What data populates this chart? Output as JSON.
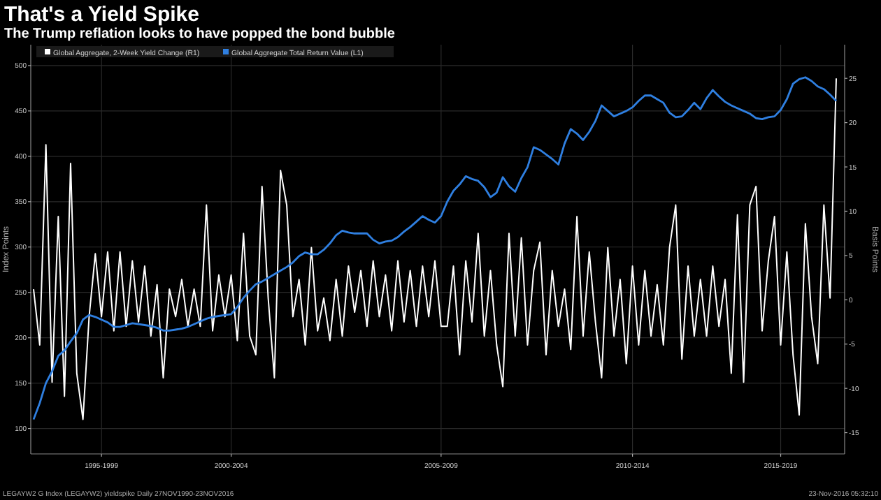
{
  "chart_data": {
    "type": "line",
    "title": "That's a Yield Spike",
    "subtitle": "The Trump reflation looks to have popped the bond bubble",
    "ylabel": "Index Points",
    "y2label": "Basis Points",
    "ylim": [
      72,
      523
    ],
    "y2lim": [
      -17.4,
      28.8
    ],
    "categories": [
      null,
      null,
      null,
      null,
      null,
      null,
      null,
      null,
      null,
      null,
      null,
      "1995-1999",
      null,
      null,
      null,
      null,
      null,
      null,
      null,
      null,
      null,
      null,
      null,
      null,
      null,
      null,
      null,
      null,
      null,
      null,
      null,
      null,
      "2000-2004",
      null,
      null,
      null,
      null,
      null,
      null,
      null,
      null,
      null,
      null,
      null,
      null,
      null,
      null,
      null,
      null,
      null,
      null,
      null,
      null,
      null,
      null,
      null,
      null,
      null,
      null,
      null,
      null,
      null,
      null,
      null,
      null,
      null,
      "2005-2009",
      null,
      null,
      null,
      null,
      null,
      null,
      null,
      null,
      null,
      null,
      null,
      null,
      null,
      null,
      null,
      null,
      null,
      null,
      null,
      null,
      null,
      null,
      null,
      null,
      null,
      null,
      null,
      null,
      null,
      null,
      "2010-2014",
      null,
      null,
      null,
      null,
      null,
      null,
      null,
      null,
      null,
      null,
      null,
      null,
      null,
      null,
      null,
      null,
      null,
      null,
      null,
      null,
      null,
      null,
      null,
      "2015-2019",
      null,
      null,
      null,
      null,
      null,
      null,
      null,
      null,
      null
    ],
    "yticks": [
      100,
      150,
      200,
      250,
      300,
      350,
      400,
      450,
      500
    ],
    "y2ticks": [
      -15,
      -10,
      -5,
      0,
      5,
      10,
      15,
      20,
      25
    ],
    "grid": true,
    "legend": "top left",
    "annotations": [
      "LEGAYW2 G Index (LEGAYW2) yieldspike Daily 27NOV1990-23NOV2016",
      "23-Nov-2016 05:32:10"
    ],
    "series": [
      {
        "name": "Global Aggregate, 2-Week Yield Change (R1)",
        "color": "#ffffff",
        "axis": "y2",
        "values": [
          1.2,
          -5.1,
          17.5,
          -9.3,
          9.4,
          -10.9,
          15.4,
          -8.3,
          -13.5,
          -1.9,
          5.2,
          -1.9,
          5.4,
          -3.5,
          5.4,
          -3,
          4.4,
          -2.5,
          3.8,
          -4.1,
          1.7,
          -8.8,
          1.2,
          -1.9,
          2.3,
          -3,
          1.2,
          -3,
          10.7,
          -3.5,
          2.8,
          -1.9,
          2.8,
          -4.6,
          7.5,
          -4.1,
          -6.2,
          12.8,
          0.2,
          -8.8,
          14.6,
          10.7,
          -1.9,
          2.3,
          -5.1,
          5.9,
          -3.5,
          0.2,
          -4.6,
          2.3,
          -4.1,
          3.8,
          -1.4,
          3.3,
          -3,
          4.4,
          -1.9,
          2.8,
          -3.5,
          4.4,
          -2.5,
          3.3,
          -3,
          3.8,
          -1.9,
          4.4,
          -3,
          -3,
          3.8,
          -6.2,
          4.4,
          -2.5,
          7.5,
          -4.1,
          3.3,
          -5.1,
          -9.8,
          7.5,
          -4.1,
          7,
          -5.1,
          3.3,
          6.5,
          -6.2,
          3.3,
          -3,
          1.2,
          -5.6,
          9.4,
          -4.1,
          5.4,
          -2.5,
          -8.8,
          5.9,
          -4.1,
          2.3,
          -7.2,
          3.8,
          -5.1,
          3.3,
          -4.1,
          1.7,
          -5.1,
          5.9,
          10.7,
          -6.7,
          3.8,
          -4.1,
          2.3,
          -4.1,
          3.8,
          -3,
          2.3,
          -8.3,
          9.6,
          -9.3,
          10.7,
          12.8,
          -3.5,
          4.4,
          9.4,
          -5.1,
          5.4,
          -6.2,
          -13,
          8.6,
          -1.9,
          -7.2,
          10.7,
          0.2,
          25
        ]
      },
      {
        "name": "Global Aggregate Total Return Value (L1)",
        "color": "#2f7fe0",
        "values": [
          110,
          128,
          150,
          163,
          180,
          186,
          196,
          205,
          220,
          225,
          223,
          220,
          217,
          212,
          212,
          214,
          216,
          215,
          214,
          213,
          211,
          208,
          208,
          209,
          210,
          212,
          215,
          218,
          221,
          223,
          224,
          225,
          226,
          234,
          244,
          252,
          259,
          262,
          266,
          270,
          274,
          278,
          283,
          290,
          294,
          292,
          292,
          297,
          304,
          313,
          318,
          316,
          315,
          315,
          315,
          308,
          304,
          306,
          307,
          311,
          317,
          322,
          328,
          334,
          330,
          327,
          334,
          350,
          362,
          369,
          378,
          375,
          373,
          366,
          355,
          360,
          377,
          367,
          361,
          376,
          388,
          410,
          407,
          402,
          397,
          391,
          414,
          430,
          425,
          418,
          427,
          439,
          456,
          450,
          444,
          447,
          450,
          454,
          461,
          467,
          467,
          463,
          459,
          448,
          443,
          444,
          451,
          459,
          452,
          464,
          473,
          466,
          460,
          456,
          453,
          450,
          447,
          442,
          441,
          443,
          444,
          451,
          463,
          480,
          485,
          487,
          483,
          477,
          474,
          468,
          461
        ]
      }
    ]
  }
}
